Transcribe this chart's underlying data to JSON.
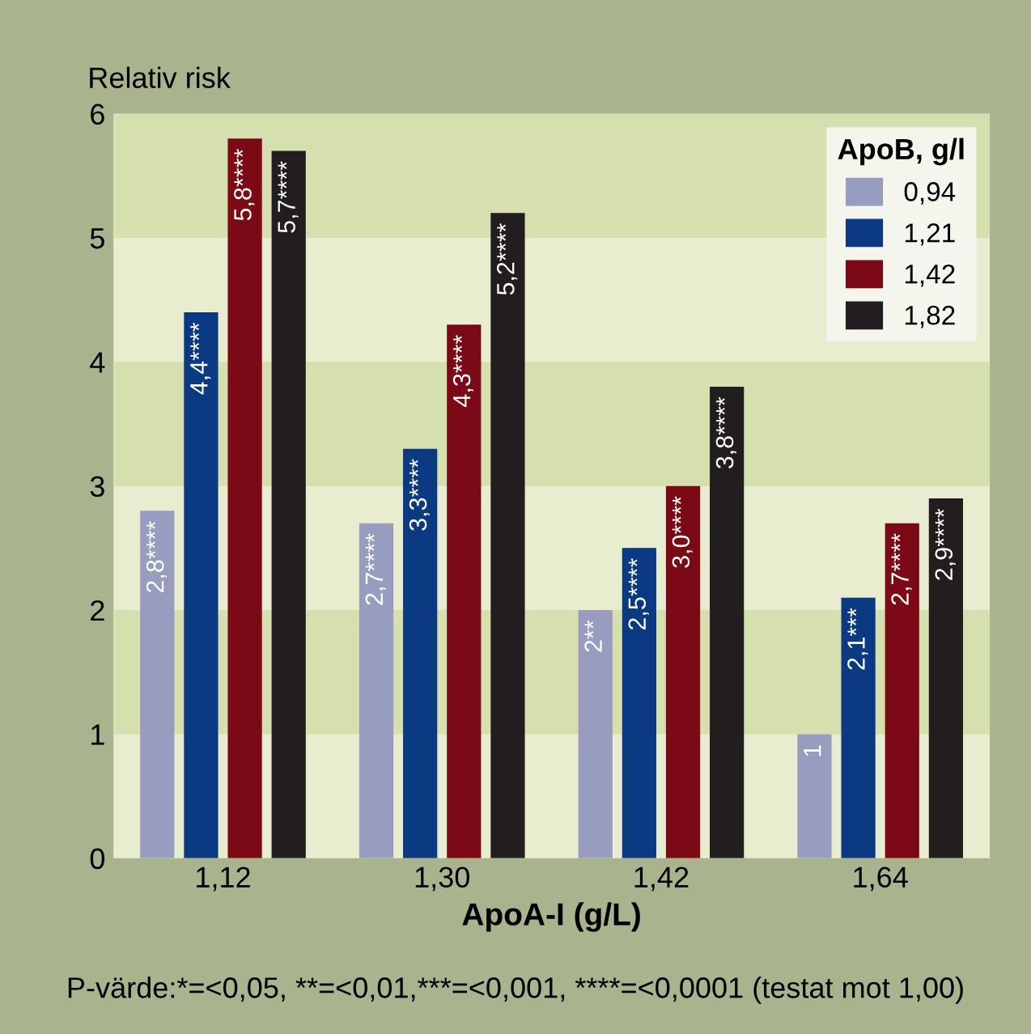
{
  "chart_data": {
    "type": "bar",
    "ylabel": "Relativ risk",
    "xlabel": "ApoA-I (g/L)",
    "legend_title": "ApoB, g/l",
    "legend": "top right",
    "bands": [
      {
        "axis": "y",
        "from": 1,
        "to": 2,
        "color": "#d6dfae"
      },
      {
        "axis": "y",
        "from": 3,
        "to": 4,
        "color": "#d6dfae"
      },
      {
        "axis": "y",
        "from": 5,
        "to": 6,
        "color": "#d6dfae"
      }
    ],
    "annotations": [
      "P-värde:*=<0,05, **=<0,01,***=<0,001, ****=<0,0001 (testat mot 1,00)"
    ],
    "categories": [
      "1,12",
      "1,30",
      "1,42",
      "1,64"
    ],
    "ylim": [
      0,
      6
    ],
    "yticks": [
      0,
      1,
      2,
      3,
      4,
      5,
      6
    ],
    "series": [
      {
        "name": "0,94",
        "color": "#989cbf",
        "values": [
          2.8,
          2.7,
          2.0,
          1.0
        ],
        "value_labels": [
          "2,8****",
          "2,7****",
          "2**",
          "1"
        ]
      },
      {
        "name": "1,21",
        "color": "#0b3a82",
        "values": [
          4.4,
          3.3,
          2.5,
          2.1
        ],
        "value_labels": [
          "4,4****",
          "3,3****",
          "2,5****",
          "2,1***"
        ]
      },
      {
        "name": "1,42",
        "color": "#7b0a16",
        "values": [
          5.8,
          4.3,
          3.0,
          2.7
        ],
        "value_labels": [
          "5,8****",
          "4,3****",
          "3,0****",
          "2,7****"
        ]
      },
      {
        "name": "1,82",
        "color": "#221e1f",
        "values": [
          5.7,
          5.2,
          3.8,
          2.9
        ],
        "value_labels": [
          "5,7****",
          "5,2****",
          "3,8****",
          "2,9****"
        ]
      }
    ]
  }
}
